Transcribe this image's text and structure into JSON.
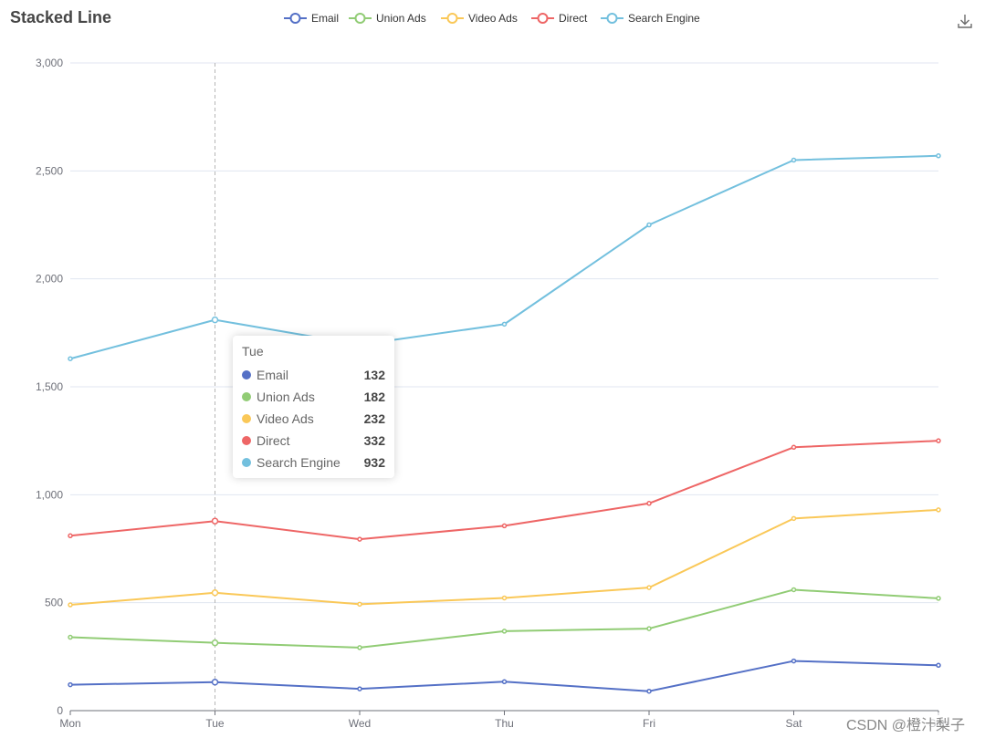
{
  "title": "Stacked Line",
  "toolbar": {
    "download_icon": "download-icon"
  },
  "legend_placement": "top-center",
  "watermark": "CSDN @橙汁梨子",
  "tooltip": {
    "category": "Tue",
    "rows": [
      {
        "name": "Email",
        "value": "132",
        "color": "#5470c6"
      },
      {
        "name": "Union Ads",
        "value": "182",
        "color": "#91cc75"
      },
      {
        "name": "Video Ads",
        "value": "232",
        "color": "#fac858"
      },
      {
        "name": "Direct",
        "value": "332",
        "color": "#ee6666"
      },
      {
        "name": "Search Engine",
        "value": "932",
        "color": "#73c0de"
      }
    ]
  },
  "chart_data": {
    "type": "line",
    "stacked": true,
    "title": "Stacked Line",
    "categories": [
      "Mon",
      "Tue",
      "Wed",
      "Thu",
      "Fri",
      "Sat",
      "Sun"
    ],
    "ylim": [
      0,
      3000
    ],
    "yticks": [
      0,
      500,
      1000,
      1500,
      2000,
      2500,
      3000
    ],
    "ytick_labels": [
      "0",
      "500",
      "1,000",
      "1,500",
      "2,000",
      "2,500",
      "3,000"
    ],
    "grid": true,
    "highlighted_category": "Tue",
    "series": [
      {
        "name": "Email",
        "color": "#5470c6",
        "values": [
          120,
          132,
          101,
          134,
          90,
          230,
          210
        ]
      },
      {
        "name": "Union Ads",
        "color": "#91cc75",
        "values": [
          220,
          182,
          191,
          234,
          290,
          330,
          310
        ]
      },
      {
        "name": "Video Ads",
        "color": "#fac858",
        "values": [
          150,
          232,
          201,
          154,
          190,
          330,
          410
        ]
      },
      {
        "name": "Direct",
        "color": "#ee6666",
        "values": [
          320,
          332,
          301,
          334,
          390,
          330,
          320
        ]
      },
      {
        "name": "Search Engine",
        "color": "#73c0de",
        "values": [
          820,
          932,
          901,
          934,
          1290,
          1330,
          1320
        ]
      }
    ]
  }
}
